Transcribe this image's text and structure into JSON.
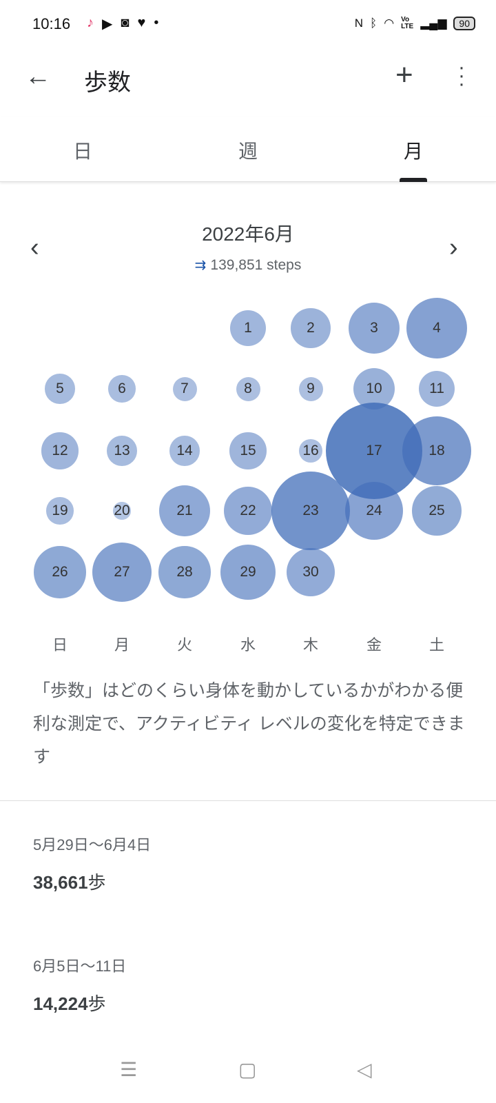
{
  "status": {
    "time": "10:16",
    "battery": "90",
    "left_icons": [
      "tiktok-icon",
      "youtube-icon",
      "instagram-icon",
      "heart-icon",
      "dot-icon"
    ],
    "right_icons": [
      "nfc-icon",
      "bluetooth-icon",
      "wifi-icon",
      "volte-icon",
      "signal-icon"
    ]
  },
  "appbar": {
    "title": "歩数"
  },
  "tabs": [
    {
      "label": "日"
    },
    {
      "label": "週"
    },
    {
      "label": "月",
      "active": true
    }
  ],
  "month": {
    "title": "2022年6月",
    "total": "139,851 steps"
  },
  "accent": "#4a74bb",
  "calendar": {
    "first_weekday": 3,
    "days": [
      {
        "d": "1",
        "level": 0.37
      },
      {
        "d": "2",
        "level": 0.41
      },
      {
        "d": "3",
        "level": 0.53
      },
      {
        "d": "4",
        "level": 0.63
      },
      {
        "d": "5",
        "level": 0.31
      },
      {
        "d": "6",
        "level": 0.28
      },
      {
        "d": "7",
        "level": 0.25
      },
      {
        "d": "8",
        "level": 0.25
      },
      {
        "d": "9",
        "level": 0.25
      },
      {
        "d": "10",
        "level": 0.43
      },
      {
        "d": "11",
        "level": 0.37
      },
      {
        "d": "12",
        "level": 0.38
      },
      {
        "d": "13",
        "level": 0.31
      },
      {
        "d": "14",
        "level": 0.31
      },
      {
        "d": "15",
        "level": 0.38
      },
      {
        "d": "16",
        "level": 0.24
      },
      {
        "d": "17",
        "level": 1.0
      },
      {
        "d": "18",
        "level": 0.72
      },
      {
        "d": "19",
        "level": 0.28
      },
      {
        "d": "20",
        "level": 0.18
      },
      {
        "d": "21",
        "level": 0.53
      },
      {
        "d": "22",
        "level": 0.5
      },
      {
        "d": "23",
        "level": 0.81
      },
      {
        "d": "24",
        "level": 0.6
      },
      {
        "d": "25",
        "level": 0.51
      },
      {
        "d": "26",
        "level": 0.54
      },
      {
        "d": "27",
        "level": 0.62
      },
      {
        "d": "28",
        "level": 0.54
      },
      {
        "d": "29",
        "level": 0.57
      },
      {
        "d": "30",
        "level": 0.5
      }
    ],
    "weekdays": [
      "日",
      "月",
      "火",
      "水",
      "木",
      "金",
      "土"
    ]
  },
  "description": "「歩数」はどのくらい身体を動かしているかがわかる便利な測定で、アクティビティ レベルの変化を特定できます",
  "weeks": [
    {
      "range": "5月29日〜6月4日",
      "value": "38,661",
      "unit": "歩"
    },
    {
      "range": "6月5日〜11日",
      "value": "14,224",
      "unit": "歩"
    }
  ]
}
